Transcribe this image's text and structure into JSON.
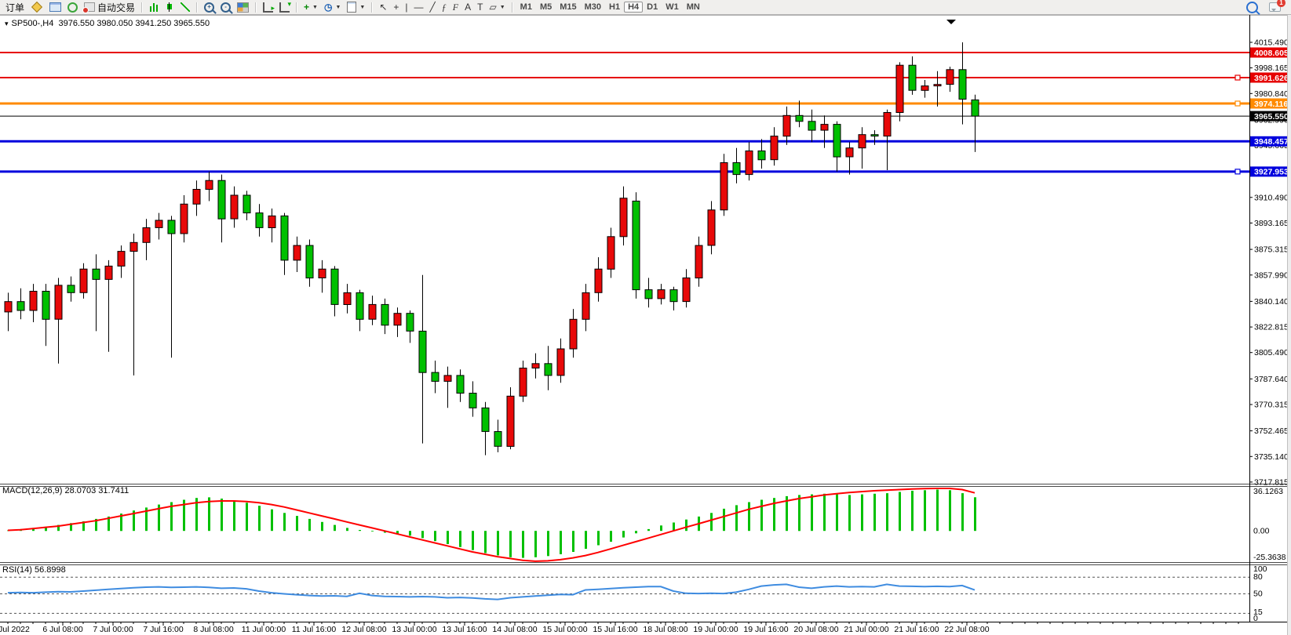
{
  "toolbar": {
    "groups": [
      {
        "items": [
          {
            "name": "orders-button",
            "label": "订单"
          },
          {
            "name": "new-order-icon",
            "icon": "diamond"
          },
          {
            "name": "market-watch-icon",
            "icon": "monitor"
          },
          {
            "name": "signals-icon",
            "icon": "signal"
          },
          {
            "name": "auto-trading-button",
            "label": "自动交易",
            "icon": "auto"
          }
        ]
      },
      {
        "items": [
          {
            "name": "bar-chart-icon",
            "icon": "bars"
          },
          {
            "name": "candlestick-chart-icon",
            "icon": "candle"
          },
          {
            "name": "line-chart-icon",
            "icon": "linechart"
          }
        ]
      },
      {
        "items": [
          {
            "name": "zoom-in-icon",
            "icon": "lens",
            "overlay": "+"
          },
          {
            "name": "zoom-out-icon",
            "icon": "lens",
            "overlay": "-"
          },
          {
            "name": "tile-windows-icon",
            "icon": "grid"
          }
        ]
      },
      {
        "items": [
          {
            "name": "auto-scroll-icon",
            "icon": "axes"
          },
          {
            "name": "chart-shift-icon",
            "icon": "axes2"
          }
        ]
      },
      {
        "items": [
          {
            "name": "indicators-button",
            "glyph": "+",
            "glyph_color": "#0a8a0a",
            "caret": true
          },
          {
            "name": "periods-button",
            "glyph": "◷",
            "glyph_color": "#1a5fb4",
            "caret": true
          },
          {
            "name": "templates-button",
            "icon": "doc",
            "caret": true
          }
        ]
      },
      {
        "items": [
          {
            "name": "cursor-tool",
            "glyph": "↖"
          },
          {
            "name": "crosshair-tool",
            "glyph": "+"
          },
          {
            "name": "vertical-line-tool",
            "glyph": "|"
          },
          {
            "name": "horizontal-line-tool",
            "glyph": "—"
          },
          {
            "name": "trendline-tool",
            "glyph": "╱"
          },
          {
            "name": "fibonacci-tool",
            "glyph": "ƒ",
            "fib": true
          },
          {
            "name": "fibonacci-fan-tool",
            "glyph": "F",
            "fib": true
          },
          {
            "name": "text-tool",
            "glyph": "A"
          },
          {
            "name": "text-label-tool",
            "glyph": "T"
          },
          {
            "name": "shapes-tool",
            "glyph": "▱",
            "caret": true
          }
        ]
      }
    ],
    "timeframes": [
      "M1",
      "M5",
      "M15",
      "M30",
      "H1",
      "H4",
      "D1",
      "W1",
      "MN"
    ],
    "active_timeframe": "H4",
    "right": {
      "search_icon": "search-icon",
      "chat_icon": "chat-icon",
      "chat_badge": "1"
    }
  },
  "chart_data": {
    "type": "candlestick",
    "title_symbol": "SP500-,H4",
    "title_ohlc": "3976.550 3980.050 3941.250 3965.550",
    "collapse_glyph": "▾",
    "price_top": 4022.92,
    "price_bottom": 3716.7,
    "bull_color": "#e80909",
    "bear_color": "#00c000",
    "price_ticks": [
      "4015.490",
      "3998.165",
      "3980.840",
      "3962.990",
      "3945.665",
      "3910.490",
      "3893.165",
      "3875.315",
      "3857.990",
      "3840.140",
      "3822.815",
      "3805.490",
      "3787.640",
      "3770.315",
      "3752.465",
      "3735.140",
      "3717.815"
    ],
    "hlines": [
      {
        "price": 4008.605,
        "label": "4008.605",
        "color": "#e60000",
        "width": 2,
        "marker": false
      },
      {
        "price": 3991.626,
        "label": "3991.626",
        "color": "#e60000",
        "width": 2,
        "marker": true
      },
      {
        "price": 3974.116,
        "label": "3974.116",
        "color": "#ff8a00",
        "width": 3,
        "marker": true
      },
      {
        "price": 3965.55,
        "label": "3965.550",
        "color": "#000000",
        "width": 1,
        "marker": false
      },
      {
        "price": 3948.457,
        "label": "3948.457",
        "color": "#0000dd",
        "width": 3,
        "marker": false
      },
      {
        "price": 3927.953,
        "label": "3927.953",
        "color": "#0000dd",
        "width": 3,
        "marker": true
      }
    ],
    "time_labels": [
      "Jul 2022",
      "6 Jul 08:00",
      "7 Jul 00:00",
      "7 Jul 16:00",
      "8 Jul 08:00",
      "11 Jul 00:00",
      "11 Jul 16:00",
      "12 Jul 08:00",
      "13 Jul 00:00",
      "13 Jul 16:00",
      "14 Jul 08:00",
      "15 Jul 00:00",
      "15 Jul 16:00",
      "18 Jul 08:00",
      "19 Jul 00:00",
      "19 Jul 16:00",
      "20 Jul 08:00",
      "21 Jul 00:00",
      "21 Jul 16:00",
      "22 Jul 08:00"
    ],
    "candles": [
      [
        3833,
        3846,
        3820,
        3840
      ],
      [
        3840,
        3849,
        3828,
        3834
      ],
      [
        3834,
        3852,
        3826,
        3847
      ],
      [
        3847,
        3852,
        3810,
        3828
      ],
      [
        3828,
        3856,
        3798,
        3851
      ],
      [
        3851,
        3857,
        3840,
        3846
      ],
      [
        3846,
        3866,
        3842,
        3862
      ],
      [
        3862,
        3872,
        3820,
        3855
      ],
      [
        3855,
        3868,
        3806,
        3864
      ],
      [
        3864,
        3878,
        3856,
        3874
      ],
      [
        3874,
        3886,
        3790,
        3880
      ],
      [
        3880,
        3896,
        3868,
        3890
      ],
      [
        3890,
        3900,
        3882,
        3895
      ],
      [
        3895,
        3898,
        3802,
        3886
      ],
      [
        3886,
        3912,
        3880,
        3906
      ],
      [
        3906,
        3922,
        3898,
        3916
      ],
      [
        3916,
        3928,
        3908,
        3922
      ],
      [
        3922,
        3926,
        3880,
        3896
      ],
      [
        3896,
        3918,
        3890,
        3912
      ],
      [
        3912,
        3915,
        3895,
        3900
      ],
      [
        3900,
        3906,
        3884,
        3890
      ],
      [
        3890,
        3903,
        3880,
        3898
      ],
      [
        3898,
        3900,
        3858,
        3868
      ],
      [
        3868,
        3884,
        3860,
        3878
      ],
      [
        3878,
        3882,
        3850,
        3856
      ],
      [
        3856,
        3868,
        3846,
        3862
      ],
      [
        3862,
        3864,
        3830,
        3838
      ],
      [
        3838,
        3852,
        3832,
        3846
      ],
      [
        3846,
        3848,
        3820,
        3828
      ],
      [
        3828,
        3844,
        3824,
        3838
      ],
      [
        3838,
        3842,
        3818,
        3824
      ],
      [
        3824,
        3836,
        3816,
        3832
      ],
      [
        3832,
        3834,
        3812,
        3820
      ],
      [
        3820,
        3858,
        3744,
        3792
      ],
      [
        3792,
        3800,
        3778,
        3786
      ],
      [
        3786,
        3796,
        3768,
        3790
      ],
      [
        3790,
        3794,
        3772,
        3778
      ],
      [
        3778,
        3786,
        3762,
        3768
      ],
      [
        3768,
        3772,
        3736,
        3752
      ],
      [
        3752,
        3760,
        3738,
        3742
      ],
      [
        3742,
        3782,
        3740,
        3776
      ],
      [
        3776,
        3800,
        3772,
        3795
      ],
      [
        3795,
        3805,
        3788,
        3798
      ],
      [
        3798,
        3810,
        3780,
        3790
      ],
      [
        3790,
        3815,
        3785,
        3808
      ],
      [
        3808,
        3835,
        3802,
        3828
      ],
      [
        3828,
        3852,
        3820,
        3846
      ],
      [
        3846,
        3870,
        3840,
        3862
      ],
      [
        3862,
        3890,
        3856,
        3884
      ],
      [
        3884,
        3918,
        3878,
        3910
      ],
      [
        3908,
        3914,
        3842,
        3848
      ],
      [
        3848,
        3856,
        3836,
        3842
      ],
      [
        3842,
        3852,
        3838,
        3848
      ],
      [
        3848,
        3850,
        3834,
        3840
      ],
      [
        3840,
        3862,
        3836,
        3856
      ],
      [
        3856,
        3884,
        3850,
        3878
      ],
      [
        3878,
        3908,
        3872,
        3902
      ],
      [
        3902,
        3940,
        3898,
        3934
      ],
      [
        3934,
        3944,
        3920,
        3926
      ],
      [
        3926,
        3948,
        3922,
        3942
      ],
      [
        3942,
        3950,
        3930,
        3936
      ],
      [
        3936,
        3958,
        3932,
        3952
      ],
      [
        3952,
        3972,
        3946,
        3966
      ],
      [
        3966,
        3976,
        3958,
        3962
      ],
      [
        3962,
        3970,
        3948,
        3956
      ],
      [
        3956,
        3966,
        3944,
        3960
      ],
      [
        3960,
        3962,
        3928,
        3938
      ],
      [
        3938,
        3948,
        3926,
        3944
      ],
      [
        3944,
        3958,
        3930,
        3953
      ],
      [
        3953,
        3956,
        3946,
        3952
      ],
      [
        3952,
        3970,
        3929,
        3968
      ],
      [
        3968,
        4002,
        3962,
        4000
      ],
      [
        4000,
        4006,
        3980,
        3983
      ],
      [
        3983,
        3990,
        3978,
        3986
      ],
      [
        3986,
        3996,
        3972,
        3987
      ],
      [
        3987,
        3999,
        3982,
        3997
      ],
      [
        3997,
        4015.5,
        3960,
        3977
      ],
      [
        3976.55,
        3980.05,
        3941.25,
        3965.55
      ]
    ],
    "macd": {
      "label": "MACD(12,26,9) 28.0703 31.7411",
      "axis_labels": [
        "36.1263",
        "0.00",
        "-25.3638"
      ],
      "max": 36.1263,
      "min": -25.3638,
      "hist_color": "#00c000",
      "signal_color": "#ff0000",
      "hist": [
        0.5,
        1.5,
        2.5,
        3.5,
        5,
        6.5,
        8,
        10,
        12,
        14.5,
        17,
        19.5,
        22,
        24,
        26,
        27.5,
        28,
        27,
        25.5,
        23.5,
        21,
        18,
        15,
        12.5,
        10,
        7.5,
        5,
        2.5,
        0.8,
        -0.5,
        -1.5,
        -2.5,
        -4,
        -6,
        -8.5,
        -11,
        -13.5,
        -16,
        -18.5,
        -20.5,
        -22,
        -22.5,
        -22,
        -21,
        -19.5,
        -17.5,
        -15,
        -12,
        -9,
        -5.5,
        -2,
        1.5,
        4.5,
        7,
        9.5,
        12,
        15,
        18.5,
        21.5,
        24,
        26,
        27.5,
        29,
        30,
        30.5,
        31,
        30.5,
        30,
        30.5,
        31,
        31.5,
        32.5,
        33.5,
        34,
        34.5,
        34,
        31.5,
        28.07
      ],
      "signal": [
        0.5,
        1,
        2,
        3,
        4,
        5.5,
        7,
        8.5,
        10.5,
        12.5,
        14.5,
        16.5,
        18.5,
        20.5,
        22,
        23.5,
        24.5,
        25,
        25,
        24.5,
        23.5,
        22,
        20,
        17.5,
        15,
        12.5,
        10,
        7.5,
        5,
        2.5,
        0,
        -2.5,
        -5,
        -7.5,
        -10,
        -12.5,
        -15,
        -17.5,
        -19.5,
        -21.5,
        -23,
        -24.5,
        -25.3,
        -25,
        -24,
        -22.5,
        -20.5,
        -18,
        -15,
        -12,
        -9,
        -6,
        -3,
        0,
        3,
        6,
        9,
        12,
        15,
        18,
        20.5,
        23,
        25,
        27,
        28.5,
        30,
        31,
        32,
        32.8,
        33.5,
        34,
        34.5,
        35,
        35.3,
        35.5,
        35.5,
        34.5,
        31.74
      ]
    },
    "rsi": {
      "label": "RSI(14) 56.8998",
      "axis_labels": [
        "100",
        "80",
        "50",
        "15",
        "0"
      ],
      "levels": [
        80,
        50,
        15
      ],
      "color": "#3f8ce0",
      "values": [
        52,
        52.5,
        52,
        53,
        54,
        53.5,
        55,
        56.5,
        58,
        59.5,
        61,
        62,
        62.5,
        61.5,
        62,
        62.5,
        61.5,
        60,
        60.5,
        59,
        55,
        52,
        50,
        48.5,
        47,
        46,
        46.5,
        45.5,
        51,
        47,
        45.5,
        45,
        44.5,
        45,
        44.5,
        43,
        43.5,
        42.5,
        41,
        40,
        43,
        44.5,
        46,
        47.5,
        49,
        48.5,
        57,
        58,
        59.5,
        61,
        62,
        63,
        63,
        55,
        51,
        50.5,
        51,
        50.5,
        53,
        58,
        64,
        66,
        67,
        62,
        60,
        62.5,
        64,
        62.5,
        63,
        62.5,
        67,
        64,
        63.5,
        63,
        63.5,
        63,
        65,
        56.9
      ]
    }
  }
}
